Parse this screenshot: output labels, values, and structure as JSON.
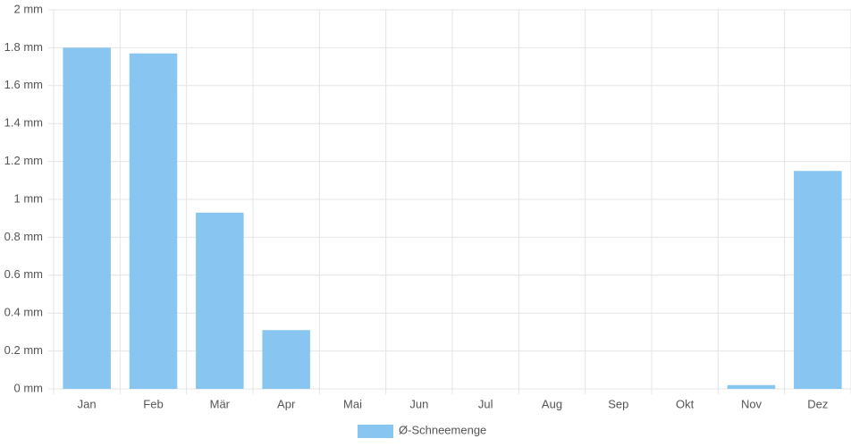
{
  "chart_data": {
    "type": "bar",
    "categories": [
      "Jan",
      "Feb",
      "Mär",
      "Apr",
      "Mai",
      "Jun",
      "Jul",
      "Aug",
      "Sep",
      "Okt",
      "Nov",
      "Dez"
    ],
    "series": [
      {
        "name": "Ø-Schneemenge",
        "color": "#88c6f1",
        "values": [
          1.8,
          1.77,
          0.93,
          0.31,
          0,
          0,
          0,
          0,
          0,
          0,
          0.02,
          1.15
        ]
      }
    ],
    "ylim": [
      0,
      2
    ],
    "yticks": [
      {
        "value": 0,
        "label": "0 mm"
      },
      {
        "value": 0.2,
        "label": "0.2 mm"
      },
      {
        "value": 0.4,
        "label": "0.4 mm"
      },
      {
        "value": 0.6,
        "label": "0.6 mm"
      },
      {
        "value": 0.8,
        "label": "0.8 mm"
      },
      {
        "value": 1,
        "label": "1 mm"
      },
      {
        "value": 1.2,
        "label": "1.2 mm"
      },
      {
        "value": 1.4,
        "label": "1.4 mm"
      },
      {
        "value": 1.6,
        "label": "1.6 mm"
      },
      {
        "value": 1.8,
        "label": "1.8 mm"
      },
      {
        "value": 2,
        "label": "2 mm"
      }
    ],
    "grid": true,
    "legend": "bottom"
  }
}
